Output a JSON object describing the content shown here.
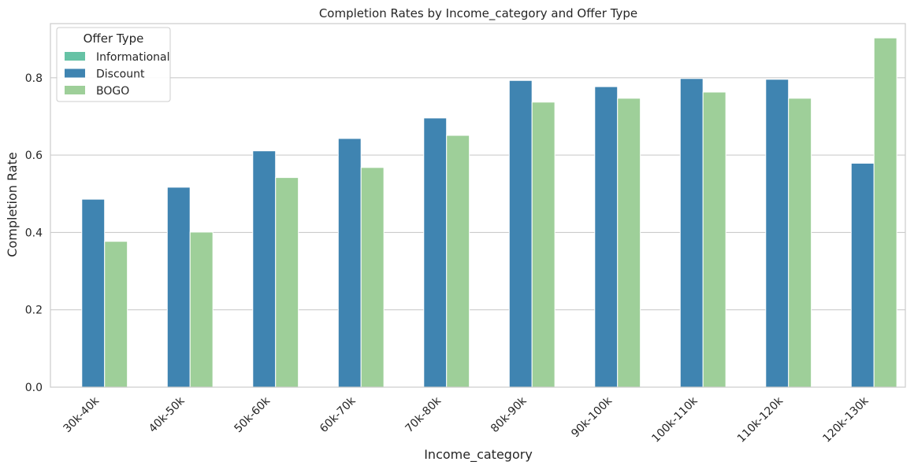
{
  "chart_data": {
    "type": "bar",
    "title": "Completion Rates by Income_category and Offer Type",
    "xlabel": "Income_category",
    "ylabel": "Completion Rate",
    "ylim": [
      0,
      0.94
    ],
    "yticks": [
      0.0,
      0.2,
      0.4,
      0.6,
      0.8
    ],
    "ytick_labels": [
      "0.0",
      "0.2",
      "0.4",
      "0.6",
      "0.8"
    ],
    "grid": "y",
    "categories": [
      "30k-40k",
      "40k-50k",
      "50k-60k",
      "60k-70k",
      "70k-80k",
      "80k-90k",
      "90k-100k",
      "100k-110k",
      "110k-120k",
      "120k-130k"
    ],
    "legend": {
      "title": "Offer Type",
      "placement": "upper-left"
    },
    "series": [
      {
        "name": "Informational",
        "color": "#66c2a5",
        "values": [
          0,
          0,
          0,
          0,
          0,
          0,
          0,
          0,
          0,
          0
        ]
      },
      {
        "name": "Discount",
        "color": "#3f84b1",
        "values": [
          0.486,
          0.517,
          0.611,
          0.643,
          0.696,
          0.793,
          0.777,
          0.798,
          0.796,
          0.579
        ]
      },
      {
        "name": "BOGO",
        "color": "#9ecf99",
        "values": [
          0.377,
          0.401,
          0.542,
          0.568,
          0.651,
          0.737,
          0.747,
          0.763,
          0.747,
          0.903
        ]
      }
    ]
  }
}
